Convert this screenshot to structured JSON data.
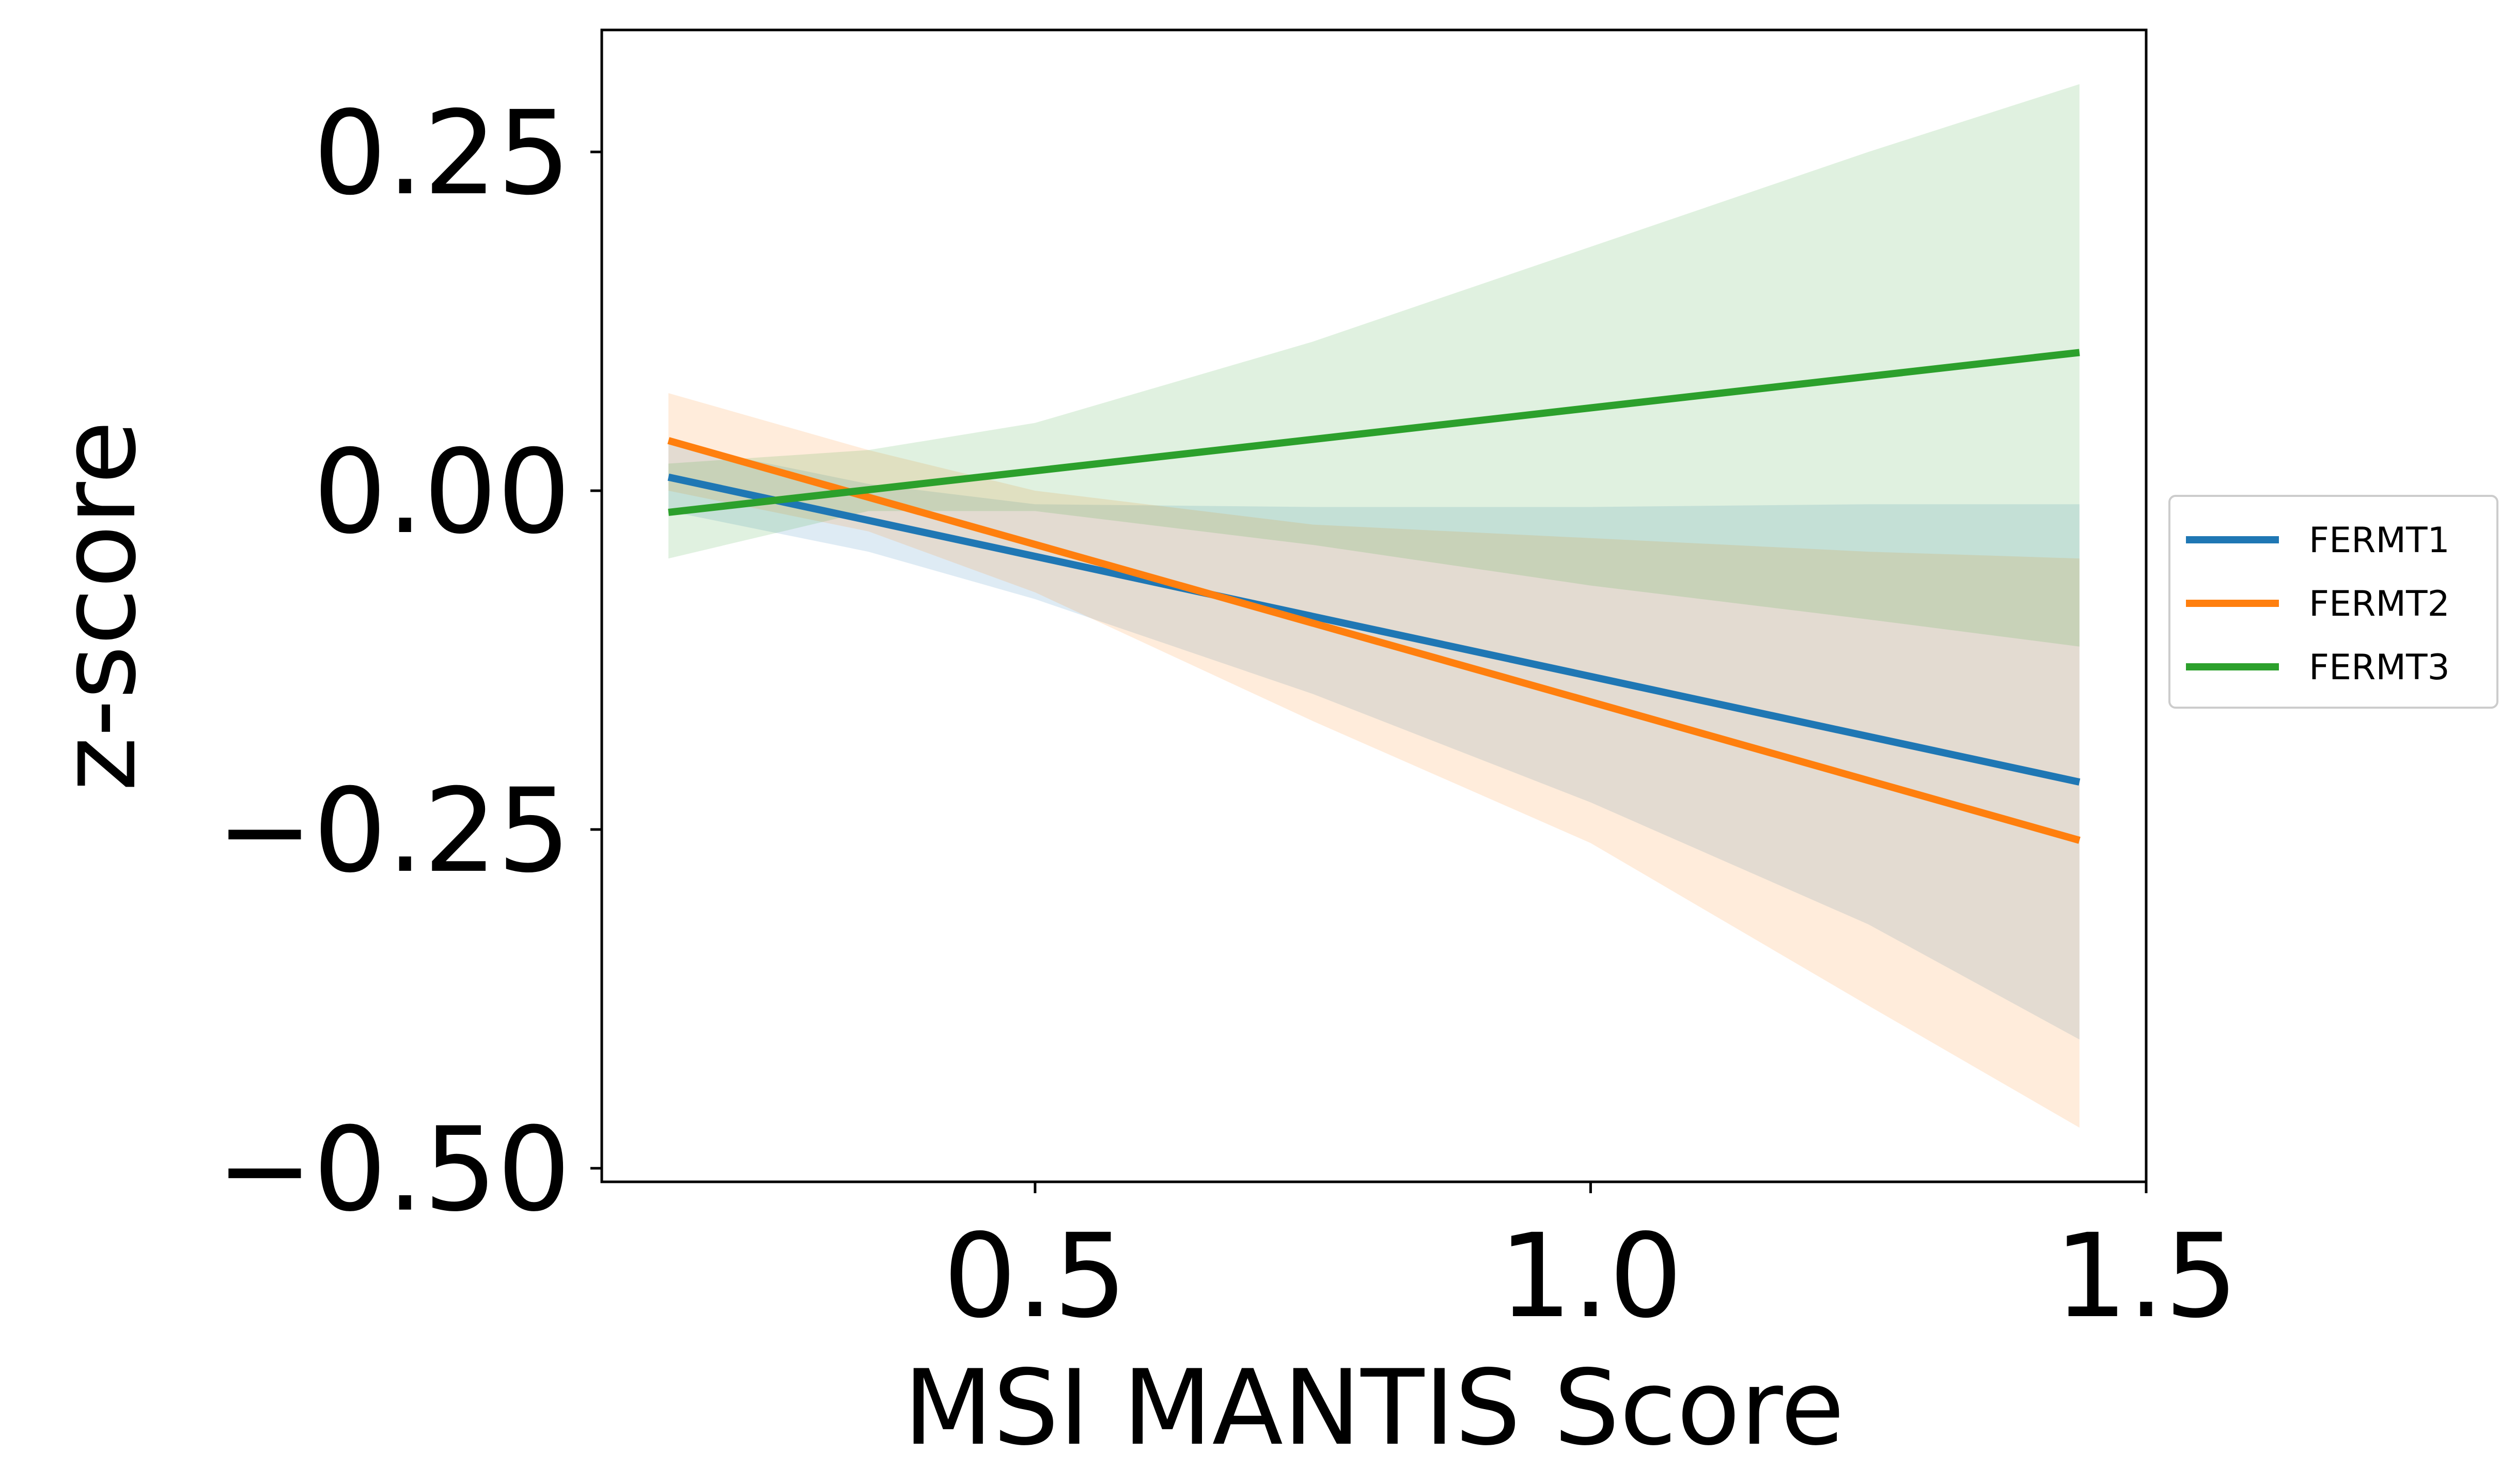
{
  "chart_data": {
    "type": "line",
    "title": "",
    "xlabel": "MSI MANTIS Score",
    "ylabel": "z-score",
    "xlim": [
      0.11,
      1.5
    ],
    "ylim": [
      -0.51,
      0.34
    ],
    "x_ticks": [
      0.5,
      1.0,
      1.5
    ],
    "x_tick_labels": [
      "0.5",
      "1.0",
      "1.5"
    ],
    "y_ticks": [
      0.25,
      0.0,
      -0.25,
      -0.5
    ],
    "y_tick_labels": [
      "0.25",
      "0.00",
      "−0.25",
      "−0.50"
    ],
    "grid": false,
    "legend_position": "outside right",
    "series": [
      {
        "name": "FERMT1",
        "color": "#1f77b4",
        "x": [
          0.17,
          1.44
        ],
        "y": [
          0.01,
          -0.215
        ],
        "band_x": [
          0.17,
          0.35,
          0.5,
          0.75,
          1.0,
          1.25,
          1.44
        ],
        "band_lower": [
          -0.015,
          -0.045,
          -0.08,
          -0.15,
          -0.23,
          -0.32,
          -0.405
        ],
        "band_upper": [
          0.035,
          0.005,
          -0.01,
          -0.012,
          -0.012,
          -0.01,
          -0.01
        ]
      },
      {
        "name": "FERMT2",
        "color": "#ff7f0e",
        "x": [
          0.17,
          1.44
        ],
        "y": [
          0.037,
          -0.258
        ],
        "band_x": [
          0.17,
          0.35,
          0.5,
          0.75,
          1.0,
          1.25,
          1.44
        ],
        "band_lower": [
          0.0,
          -0.03,
          -0.075,
          -0.17,
          -0.26,
          -0.38,
          -0.47
        ],
        "band_upper": [
          0.072,
          0.03,
          0.0,
          -0.025,
          -0.035,
          -0.045,
          -0.05
        ]
      },
      {
        "name": "FERMT3",
        "color": "#2ca02c",
        "x": [
          0.17,
          1.44
        ],
        "y": [
          -0.016,
          0.102
        ],
        "band_x": [
          0.17,
          0.35,
          0.5,
          0.75,
          1.0,
          1.25,
          1.44
        ],
        "band_lower": [
          -0.05,
          -0.015,
          -0.015,
          -0.04,
          -0.07,
          -0.095,
          -0.115
        ],
        "band_upper": [
          0.02,
          0.03,
          0.05,
          0.11,
          0.18,
          0.25,
          0.3
        ]
      }
    ]
  }
}
